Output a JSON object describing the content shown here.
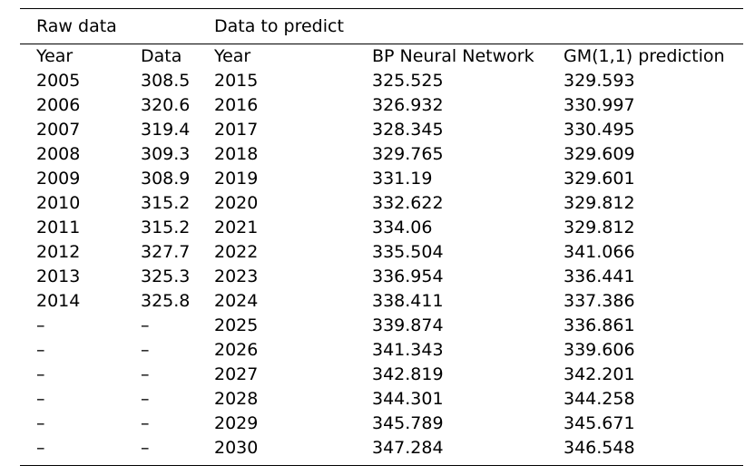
{
  "group_headers": {
    "raw": "Raw data",
    "predict": "Data to predict"
  },
  "columns": [
    "Year",
    "Data",
    "Year",
    "BP Neural Network",
    "GM(1,1) prediction"
  ],
  "rows": [
    [
      "2005",
      "308.5",
      "2015",
      "325.525",
      "329.593"
    ],
    [
      "2006",
      "320.6",
      "2016",
      "326.932",
      "330.997"
    ],
    [
      "2007",
      "319.4",
      "2017",
      "328.345",
      "330.495"
    ],
    [
      "2008",
      "309.3",
      "2018",
      "329.765",
      "329.609"
    ],
    [
      "2009",
      "308.9",
      "2019",
      "331.19",
      "329.601"
    ],
    [
      "2010",
      "315.2",
      "2020",
      "332.622",
      "329.812"
    ],
    [
      "2011",
      "315.2",
      "2021",
      "334.06",
      "329.812"
    ],
    [
      "2012",
      "327.7",
      "2022",
      "335.504",
      "341.066"
    ],
    [
      "2013",
      "325.3",
      "2023",
      "336.954",
      "336.441"
    ],
    [
      "2014",
      "325.8",
      "2024",
      "338.411",
      "337.386"
    ],
    [
      "–",
      "–",
      "2025",
      "339.874",
      "336.861"
    ],
    [
      "–",
      "–",
      "2026",
      "341.343",
      "339.606"
    ],
    [
      "–",
      "–",
      "2027",
      "342.819",
      "342.201"
    ],
    [
      "–",
      "–",
      "2028",
      "344.301",
      "344.258"
    ],
    [
      "–",
      "–",
      "2029",
      "345.789",
      "345.671"
    ],
    [
      "–",
      "–",
      "2030",
      "347.284",
      "346.548"
    ]
  ]
}
